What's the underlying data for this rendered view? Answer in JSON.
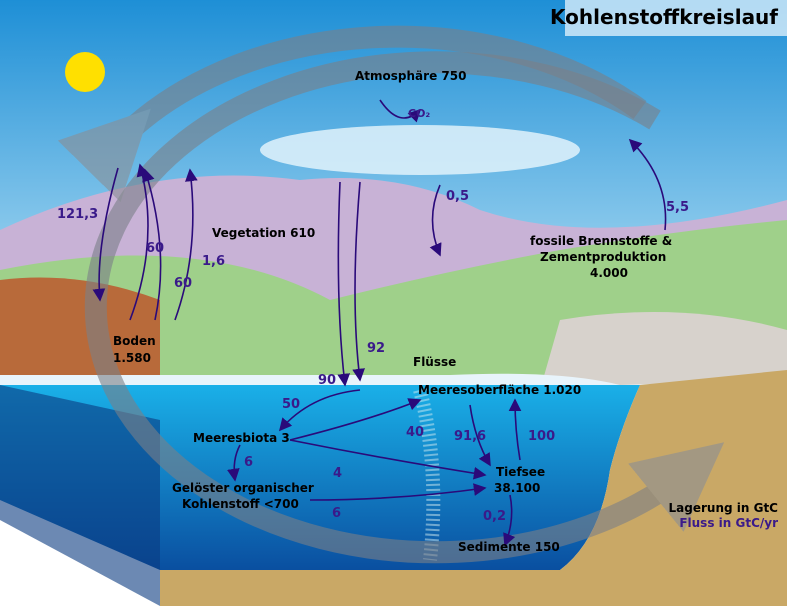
{
  "title": "Kohlenstoffkreislauf",
  "co2_label": "CO₂",
  "reservoirs": [
    {
      "lines": [
        "Atmosphäre 750"
      ]
    },
    {
      "lines": [
        "Vegetation 610"
      ]
    },
    {
      "lines": [
        "Boden",
        "1.580"
      ]
    },
    {
      "lines": [
        "fossile Brennstoffe &",
        "Zementproduktion",
        "4.000"
      ]
    },
    {
      "lines": [
        "Flüsse"
      ]
    },
    {
      "lines": [
        "Meeresoberfläche 1.020"
      ]
    },
    {
      "lines": [
        "Meeresbiota 3"
      ]
    },
    {
      "lines": [
        "Gelöster organischer",
        "Kohlenstoff  <700"
      ]
    },
    {
      "lines": [
        "Tiefsee",
        "38.100"
      ]
    },
    {
      "lines": [
        "Sedimente 150"
      ]
    }
  ],
  "fluxes": [
    "121,3",
    "60",
    "60",
    "1,6",
    "0,5",
    "5,5",
    "92",
    "90",
    "50",
    "40",
    "91,6",
    "100",
    "6",
    "4",
    "6",
    "0,2"
  ],
  "legend": {
    "storage": "Lagerung in GtC",
    "flux": "Fluss in GtC/yr"
  }
}
